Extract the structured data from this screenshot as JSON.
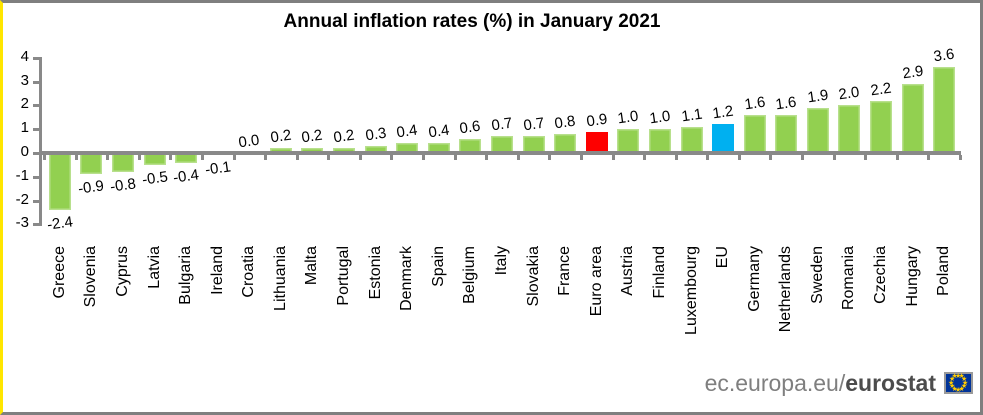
{
  "title": "Annual inflation rates (%) in January 2021",
  "footer": {
    "link_regular": "ec.europa.eu/",
    "link_bold": "eurostat",
    "flag_icon": "eu-flag-icon"
  },
  "colors": {
    "green": "#92D050",
    "red": "#FE0000",
    "blue": "#00B0F0",
    "axis": "#898989",
    "text": "#000000",
    "frame_gray": "#7F7F7F",
    "frame_yellow": "#FFE600",
    "footer_text": "#7F7F7F",
    "footer_bold": "#4C4C4C",
    "flag_bg": "#003399",
    "flag_stars": "#FFCC00"
  },
  "chart_data": {
    "type": "bar",
    "title": "Annual inflation rates (%) in January 2021",
    "xlabel": "",
    "ylabel": "",
    "ylim": [
      -3,
      4
    ],
    "yticks": [
      4,
      3,
      2,
      1,
      0,
      -1,
      -2,
      -3
    ],
    "grid": false,
    "legend": false,
    "data_labels": true,
    "categories": [
      "Greece",
      "Slovenia",
      "Cyprus",
      "Latvia",
      "Bulgaria",
      "Ireland",
      "Croatia",
      "Lithuania",
      "Malta",
      "Portugal",
      "Estonia",
      "Denmark",
      "Spain",
      "Belgium",
      "Italy",
      "Slovakia",
      "France",
      "Euro area",
      "Austria",
      "Finland",
      "Luxembourg",
      "EU",
      "Germany",
      "Netherlands",
      "Sweden",
      "Romania",
      "Czechia",
      "Hungary",
      "Poland"
    ],
    "values": [
      -2.4,
      -0.9,
      -0.8,
      -0.5,
      -0.4,
      -0.1,
      0.0,
      0.2,
      0.2,
      0.2,
      0.3,
      0.4,
      0.4,
      0.6,
      0.7,
      0.7,
      0.8,
      0.9,
      1.0,
      1.0,
      1.1,
      1.2,
      1.6,
      1.6,
      1.9,
      2.0,
      2.2,
      2.9,
      3.6
    ],
    "labels": [
      "-2.4",
      "-0.9",
      "-0.8",
      "-0.5",
      "-0.4",
      "-0.1",
      "0.0",
      "0.2",
      "0.2",
      "0.2",
      "0.3",
      "0.4",
      "0.4",
      "0.6",
      "0.7",
      "0.7",
      "0.8",
      "0.9",
      "1.0",
      "1.0",
      "1.1",
      "1.2",
      "1.6",
      "1.6",
      "1.9",
      "2.0",
      "2.2",
      "2.9",
      "3.6"
    ],
    "highlight": {
      "Euro area": "red",
      "EU": "blue"
    }
  }
}
